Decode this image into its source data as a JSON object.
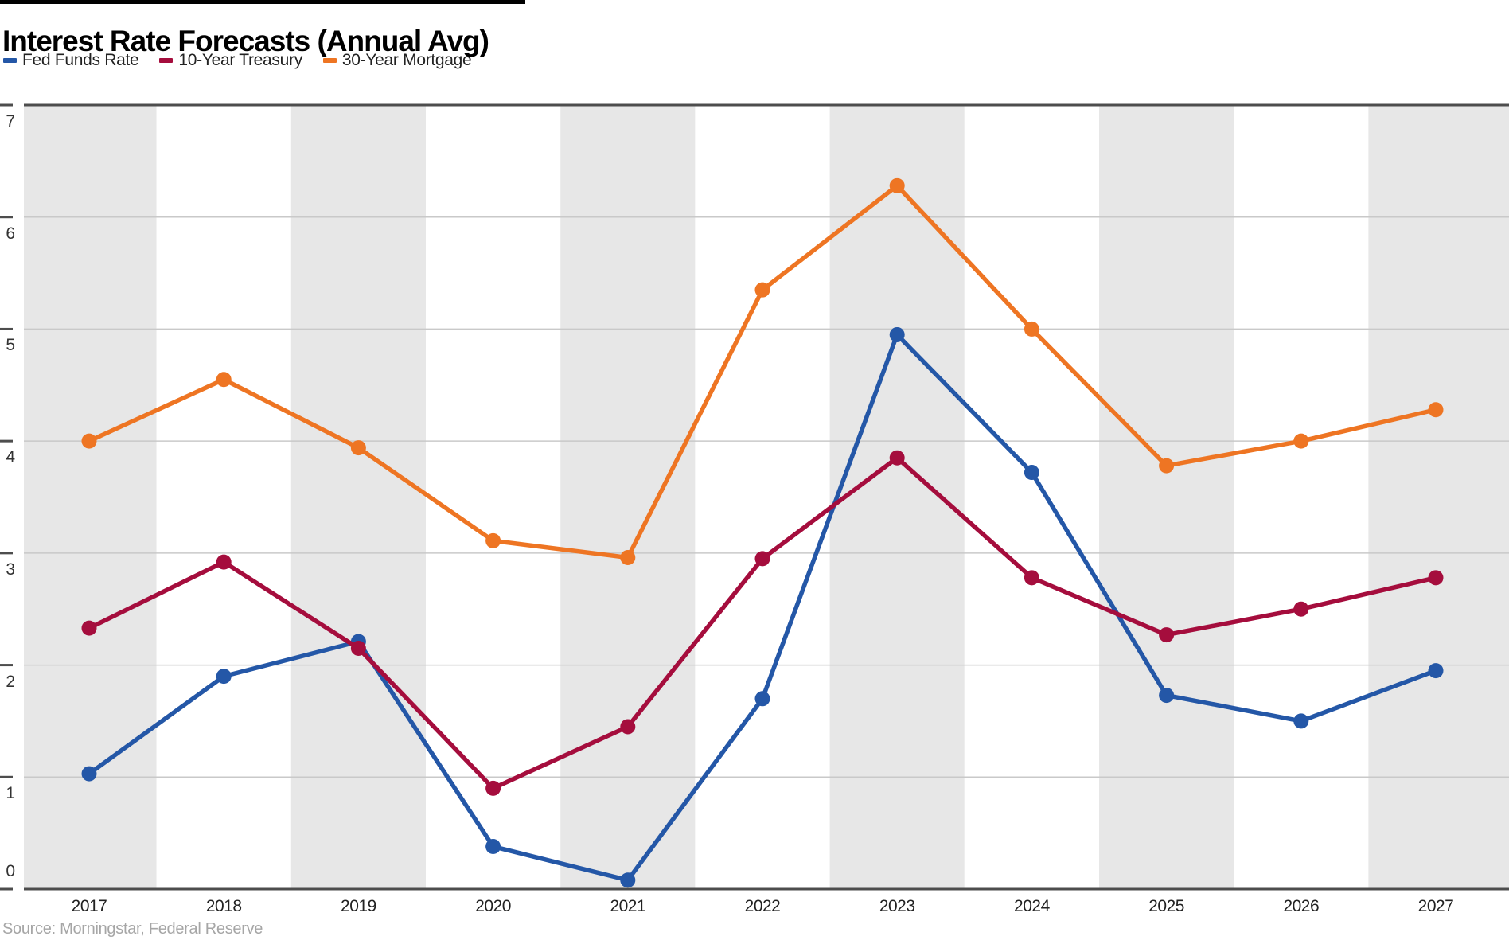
{
  "header": {
    "title": "Interest Rate Forecasts (Annual Avg)"
  },
  "source_note": "Source: Morningstar, Federal Reserve",
  "chart_data": {
    "type": "line",
    "title": "Interest Rate Forecasts (Annual Avg)",
    "x": [
      "2017",
      "2018",
      "2019",
      "2020",
      "2021",
      "2022",
      "2023",
      "2024",
      "2025",
      "2026",
      "2027"
    ],
    "series": [
      {
        "name": "Fed Funds Rate",
        "color": "#2457a7",
        "values": [
          1.03,
          1.9,
          2.21,
          0.38,
          0.08,
          1.7,
          4.95,
          3.72,
          1.73,
          1.5,
          1.95
        ]
      },
      {
        "name": "10-Year Treasury",
        "color": "#a50d3d",
        "values": [
          2.33,
          2.92,
          2.15,
          0.9,
          1.45,
          2.95,
          3.85,
          2.78,
          2.27,
          2.5,
          2.78
        ]
      },
      {
        "name": "30-Year Mortgage",
        "color": "#ee7523",
        "values": [
          4.0,
          4.55,
          3.94,
          3.11,
          2.96,
          5.35,
          6.28,
          5.0,
          3.78,
          4.0,
          4.28
        ]
      }
    ],
    "ylim": [
      0,
      7
    ],
    "y_ticks": [
      0,
      1,
      2,
      3,
      4,
      5,
      6,
      7
    ],
    "y_tick_labels": [
      "0",
      "1",
      "2",
      "3",
      "4",
      "5",
      "6",
      "7"
    ],
    "grid": "horizontal-on",
    "legend_position": "top-left",
    "style": {
      "band_color": "#e7e7e7",
      "band_white": "#ffffff",
      "gridline_color": "#c9c9c9",
      "axis_color": "#4d4d4d",
      "accent_bar_color": "#000000"
    }
  }
}
